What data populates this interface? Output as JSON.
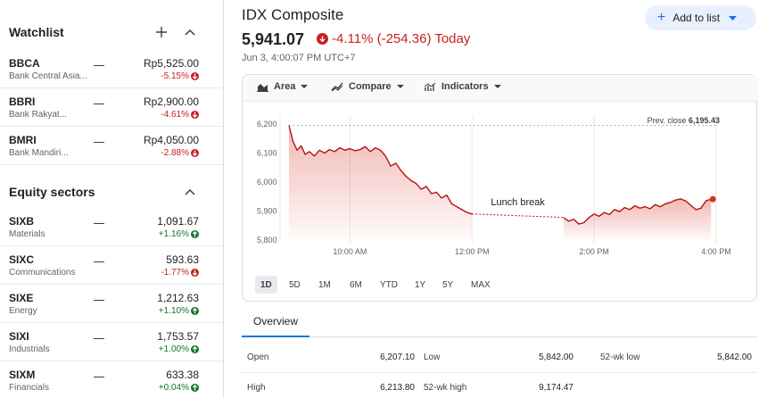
{
  "sidebar": {
    "watchlist": {
      "title": "Watchlist",
      "items": [
        {
          "symbol": "BBCA",
          "name": "Bank Central Asia...",
          "value": "Rp5,525.00",
          "change": "-5.15%",
          "dir": "down"
        },
        {
          "symbol": "BBRI",
          "name": "Bank Rakyat...",
          "value": "Rp2,900.00",
          "change": "-4.61%",
          "dir": "down"
        },
        {
          "symbol": "BMRI",
          "name": "Bank Mandiri...",
          "value": "Rp4,050.00",
          "change": "-2.88%",
          "dir": "down"
        }
      ]
    },
    "sectors": {
      "title": "Equity sectors",
      "items": [
        {
          "symbol": "SIXB",
          "name": "Materials",
          "value": "1,091.67",
          "change": "+1.16%",
          "dir": "up"
        },
        {
          "symbol": "SIXC",
          "name": "Communications",
          "value": "593.63",
          "change": "-1.77%",
          "dir": "down"
        },
        {
          "symbol": "SIXE",
          "name": "Energy",
          "value": "1,212.63",
          "change": "+1.10%",
          "dir": "up"
        },
        {
          "symbol": "SIXI",
          "name": "Industrials",
          "value": "1,753.57",
          "change": "+1.00%",
          "dir": "up"
        },
        {
          "symbol": "SIXM",
          "name": "Financials",
          "value": "633.38",
          "change": "+0.04%",
          "dir": "up"
        }
      ]
    }
  },
  "header": {
    "title": "IDX Composite",
    "price": "5,941.07",
    "change": "-4.11% (-254.36) Today",
    "timestamp": "Jun 3, 4:00:07 PM UTC+7",
    "add_to_list": "Add to list"
  },
  "toolbar": {
    "area": "Area",
    "compare": "Compare",
    "indicators": "Indicators"
  },
  "ranges": [
    "1D",
    "5D",
    "1M",
    "6M",
    "YTD",
    "1Y",
    "5Y",
    "MAX"
  ],
  "active_range": "1D",
  "tabs": {
    "overview": "Overview"
  },
  "stats": [
    {
      "label": "Open",
      "value": "6,207.10"
    },
    {
      "label": "Low",
      "value": "5,842.00"
    },
    {
      "label": "52-wk low",
      "value": "5,842.00"
    },
    {
      "label": "High",
      "value": "6,213.80"
    },
    {
      "label": "52-wk high",
      "value": "9,174.47"
    }
  ],
  "colors": {
    "negative": "#c5221f",
    "positive": "#137333",
    "accent": "#1a73e8",
    "line": "#b31412"
  },
  "chart_data": {
    "type": "area",
    "y_ticks": [
      "6,200",
      "6,100",
      "6,000",
      "5,900",
      "5,800"
    ],
    "ylim": [
      5800,
      6200
    ],
    "x_ticks": [
      "10:00 AM",
      "12:00 PM",
      "2:00 PM",
      "4:00 PM"
    ],
    "prev_close_label": "Prev. close",
    "prev_close": "6,195.43",
    "prev_close_value": 6195.43,
    "annotation": "Lunch break",
    "session1": [
      [
        "09:00",
        6195
      ],
      [
        "09:04",
        6140
      ],
      [
        "09:08",
        6110
      ],
      [
        "09:12",
        6125
      ],
      [
        "09:16",
        6095
      ],
      [
        "09:20",
        6105
      ],
      [
        "09:25",
        6090
      ],
      [
        "09:30",
        6110
      ],
      [
        "09:35",
        6100
      ],
      [
        "09:40",
        6112
      ],
      [
        "09:45",
        6105
      ],
      [
        "09:50",
        6118
      ],
      [
        "09:55",
        6110
      ],
      [
        "10:00",
        6115
      ],
      [
        "10:05",
        6108
      ],
      [
        "10:10",
        6112
      ],
      [
        "10:15",
        6122
      ],
      [
        "10:20",
        6105
      ],
      [
        "10:25",
        6118
      ],
      [
        "10:30",
        6110
      ],
      [
        "10:35",
        6090
      ],
      [
        "10:40",
        6055
      ],
      [
        "10:45",
        6065
      ],
      [
        "10:50",
        6040
      ],
      [
        "10:55",
        6020
      ],
      [
        "11:00",
        6005
      ],
      [
        "11:05",
        5995
      ],
      [
        "11:10",
        5975
      ],
      [
        "11:15",
        5985
      ],
      [
        "11:20",
        5960
      ],
      [
        "11:25",
        5965
      ],
      [
        "11:30",
        5945
      ],
      [
        "11:35",
        5955
      ],
      [
        "11:40",
        5925
      ],
      [
        "11:45",
        5915
      ],
      [
        "11:50",
        5905
      ],
      [
        "11:55",
        5895
      ],
      [
        "12:00",
        5890
      ]
    ],
    "session2": [
      [
        "13:30",
        5878
      ],
      [
        "13:35",
        5865
      ],
      [
        "13:40",
        5872
      ],
      [
        "13:45",
        5855
      ],
      [
        "13:50",
        5860
      ],
      [
        "13:55",
        5878
      ],
      [
        "14:00",
        5890
      ],
      [
        "14:05",
        5882
      ],
      [
        "14:10",
        5895
      ],
      [
        "14:15",
        5888
      ],
      [
        "14:20",
        5905
      ],
      [
        "14:25",
        5898
      ],
      [
        "14:30",
        5912
      ],
      [
        "14:35",
        5905
      ],
      [
        "14:40",
        5918
      ],
      [
        "14:45",
        5910
      ],
      [
        "14:50",
        5915
      ],
      [
        "14:55",
        5908
      ],
      [
        "15:00",
        5922
      ],
      [
        "15:05",
        5915
      ],
      [
        "15:10",
        5925
      ],
      [
        "15:15",
        5930
      ],
      [
        "15:20",
        5938
      ],
      [
        "15:25",
        5942
      ],
      [
        "15:30",
        5935
      ],
      [
        "15:35",
        5920
      ],
      [
        "15:40",
        5905
      ],
      [
        "15:45",
        5910
      ],
      [
        "15:50",
        5935
      ],
      [
        "15:55",
        5941
      ]
    ]
  }
}
